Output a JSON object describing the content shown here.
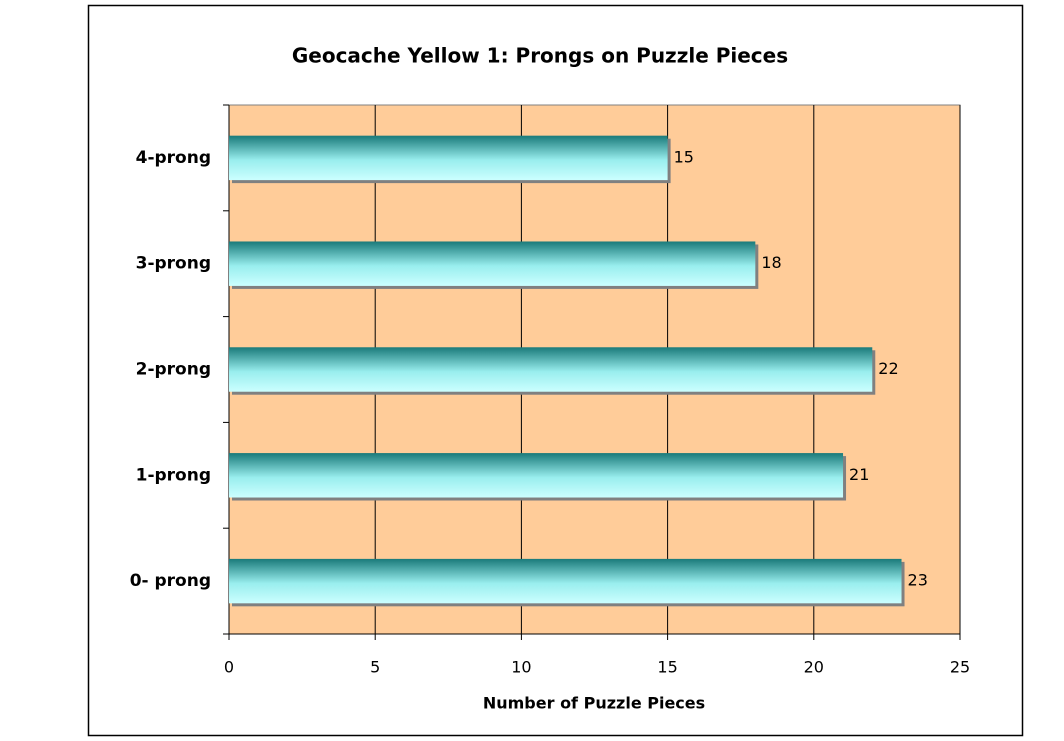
{
  "chart_data": {
    "type": "bar",
    "orientation": "horizontal",
    "title": "Geocache Yellow 1: Prongs on Puzzle Pieces",
    "x_label": "Number of Puzzle Pieces",
    "categories": [
      "0- prong",
      "1-prong",
      "2-prong",
      "3-prong",
      "4-prong"
    ],
    "values": [
      23,
      21,
      22,
      18,
      15
    ],
    "color": "#1a7f7f",
    "plot_background": "#ffcc99",
    "xlim": [
      0,
      25
    ],
    "xticks": [
      0,
      5,
      10,
      15,
      20,
      25
    ],
    "grid": true
  }
}
